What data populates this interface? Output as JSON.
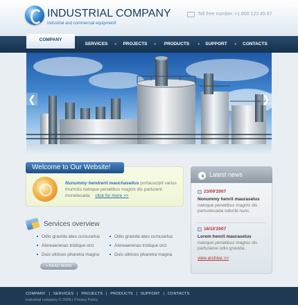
{
  "header": {
    "company_name": "INDUSTRIAL COMPANY",
    "tagline": "Industrial and commercial equipment!",
    "phone_label": "Toll free number:",
    "phone_number": "+1 800 123 45 67"
  },
  "nav": {
    "items": [
      {
        "label": "COMPANY"
      },
      {
        "label": "SERVICES"
      },
      {
        "label": "PROJECTS"
      },
      {
        "label": "PRODUCTS"
      },
      {
        "label": "SUPPORT"
      },
      {
        "label": "CONTACTS"
      }
    ],
    "active": "COMPANY"
  },
  "banner": {
    "prev_arrow": "❮",
    "next_arrow": "❯"
  },
  "welcome": {
    "title": "Welcome to Our Website!",
    "lead": "Nunummy hendrerit mauchasellus",
    "text1": " portauscipit varius mumciis ",
    "italic": "natoque penatibus magnis",
    "text2": " dis parturent monelesada",
    "more": "click for more >>"
  },
  "services": {
    "title": "Services overview",
    "col1": [
      "Odio gravida ates cursusetus",
      "Aloreaerenas tristique orci",
      "Duis ultrices pharetra magna"
    ],
    "col2": [
      "Odio gravida ates cursusetus",
      "Aloreaerenas tristique orci",
      "Duis ultrices pharetra magna"
    ],
    "read_more": "» READ MORE"
  },
  "news": {
    "title": "Latest news",
    "items": [
      {
        "date": "23/09'2007",
        "title": "Nonummy henrit mauraselus",
        "body_italic": "natoque penatibus magnis",
        "body": " dis partuslesada odiorbi nunc."
      },
      {
        "date": "16/10'2007",
        "title": "Lorem henrit mauraselus",
        "body_italic": "natoque penatibus magnis",
        "body": " dis partuslese odio gravida."
      }
    ],
    "archive": "view archive >>"
  },
  "footer": {
    "links": [
      "COMPANY",
      "|",
      "SERVICES",
      "|",
      "PROJECTS",
      "|",
      "PRODUCTS",
      "|",
      "SUPPORT",
      "|",
      "CONTACTS"
    ],
    "copyright": "Industrial company © 2008 | Privacy Policy"
  },
  "colors": {
    "nav_bg": "#1e3d5c",
    "accent_blue": "#2b6db0",
    "news_red": "#b0332e",
    "footer_bg": "#203a55"
  }
}
